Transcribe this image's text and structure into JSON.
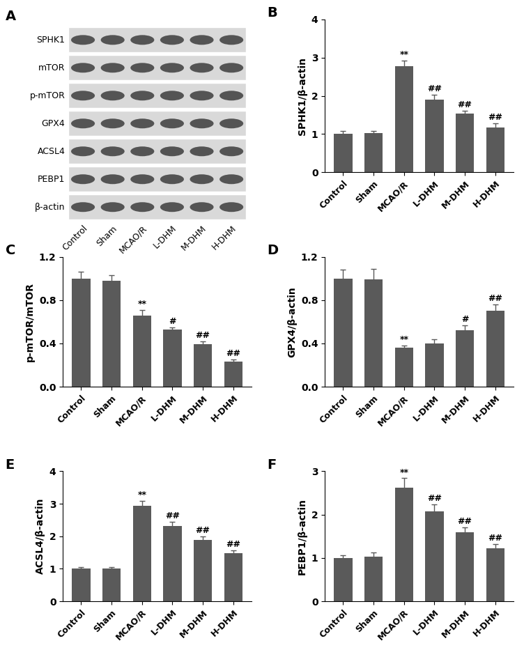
{
  "blot": {
    "panel": "A",
    "rows": [
      "SPHK1",
      "mTOR",
      "p-mTOR",
      "GPX4",
      "ACSL4",
      "PEBP1",
      "β-actin"
    ],
    "columns": [
      "Control",
      "Sham",
      "MCAO/R",
      "L-DHM",
      "M-DHM",
      "H-DHM"
    ]
  },
  "chart_data": [
    {
      "type": "bar",
      "panel": "B",
      "y_label": "SPHK1/β-actin",
      "categories": [
        "Control",
        "Sham",
        "MCAO/R",
        "L-DHM",
        "M-DHM",
        "H-DHM"
      ],
      "values": [
        1.0,
        1.03,
        2.77,
        1.9,
        1.53,
        1.18
      ],
      "errors": [
        0.08,
        0.05,
        0.15,
        0.13,
        0.08,
        0.1
      ],
      "annotations": [
        null,
        null,
        "**",
        "##",
        "##",
        "##"
      ],
      "color": "#5a5a5a",
      "ylim": [
        0,
        4
      ],
      "yticks": [
        0,
        1,
        2,
        3,
        4
      ]
    },
    {
      "type": "bar",
      "panel": "C",
      "y_label": "p-mTOR/mTOR",
      "categories": [
        "Control",
        "Sham",
        "MCAO/R",
        "L-DHM",
        "M-DHM",
        "H-DHM"
      ],
      "values": [
        1.0,
        0.98,
        0.66,
        0.53,
        0.39,
        0.23
      ],
      "errors": [
        0.06,
        0.05,
        0.05,
        0.02,
        0.03,
        0.02
      ],
      "annotations": [
        null,
        null,
        "**",
        "#",
        "##",
        "##"
      ],
      "color": "#5a5a5a",
      "ylim": [
        0,
        1.2
      ],
      "yticks": [
        {
          "value": 0,
          "label": "0.0"
        },
        0.4,
        0.8,
        1.2
      ]
    },
    {
      "type": "bar",
      "panel": "D",
      "y_label": "GPX4/β-actin",
      "categories": [
        "Control",
        "Sham",
        "MCAO/R",
        "L-DHM",
        "M-DHM",
        "H-DHM"
      ],
      "values": [
        1.0,
        0.99,
        0.36,
        0.4,
        0.52,
        0.7
      ],
      "errors": [
        0.08,
        0.1,
        0.02,
        0.04,
        0.05,
        0.06
      ],
      "annotations": [
        null,
        null,
        "**",
        null,
        "#",
        "##"
      ],
      "color": "#5a5a5a",
      "ylim": [
        0,
        1.2
      ],
      "yticks": [
        {
          "value": 0,
          "label": "0.0"
        },
        0.4,
        0.8,
        1.2
      ]
    },
    {
      "type": "bar",
      "panel": "E",
      "y_label": "ACSL4/β-actin",
      "categories": [
        "Control",
        "Sham",
        "MCAO/R",
        "L-DHM",
        "M-DHM",
        "H-DHM"
      ],
      "values": [
        1.0,
        1.0,
        2.93,
        2.31,
        1.89,
        1.49
      ],
      "errors": [
        0.06,
        0.05,
        0.15,
        0.14,
        0.1,
        0.08
      ],
      "annotations": [
        null,
        null,
        "**",
        "##",
        "##",
        "##"
      ],
      "color": "#5a5a5a",
      "ylim": [
        0,
        4
      ],
      "yticks": [
        0,
        1,
        2,
        3,
        4
      ]
    },
    {
      "type": "bar",
      "panel": "F",
      "y_label": "PEBP1/β-actin",
      "categories": [
        "Control",
        "Sham",
        "MCAO/R",
        "L-DHM",
        "M-DHM",
        "H-DHM"
      ],
      "values": [
        1.0,
        1.03,
        2.62,
        2.08,
        1.6,
        1.22
      ],
      "errors": [
        0.06,
        0.1,
        0.22,
        0.16,
        0.1,
        0.1
      ],
      "annotations": [
        null,
        null,
        "**",
        "##",
        "##",
        "##"
      ],
      "color": "#5a5a5a",
      "ylim": [
        0,
        3
      ],
      "yticks": [
        0,
        1,
        2,
        3
      ]
    }
  ]
}
